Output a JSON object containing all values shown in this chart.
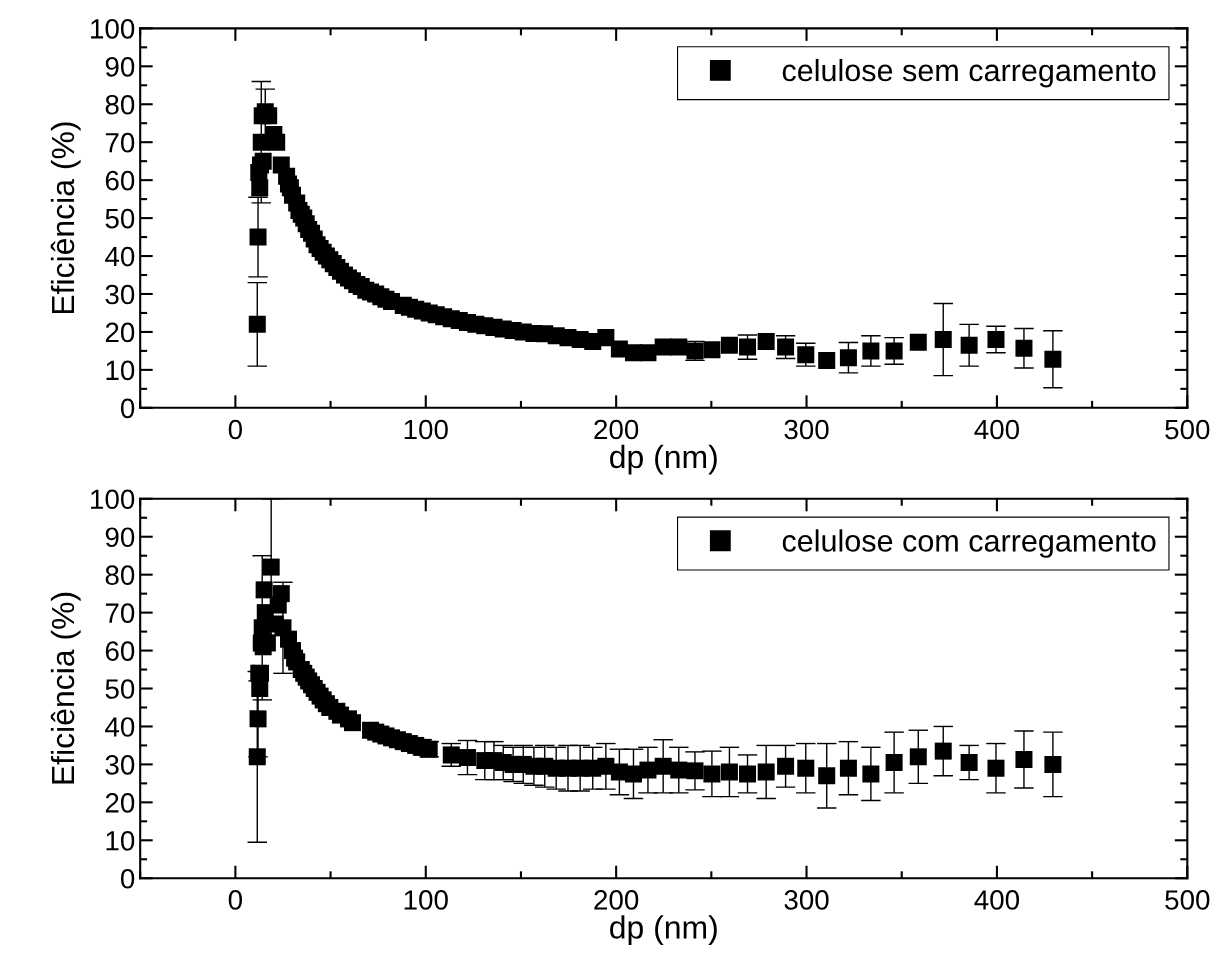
{
  "chart_data": [
    {
      "type": "scatter",
      "xlabel": "dp (nm)",
      "ylabel": "Eficiência (%)",
      "xlim": [
        -50,
        500
      ],
      "xticks": [
        0,
        100,
        200,
        300,
        400,
        500
      ],
      "ylim": [
        0,
        100
      ],
      "yticks": [
        0,
        10,
        20,
        30,
        40,
        50,
        60,
        70,
        80,
        90,
        100
      ],
      "legend": "top right",
      "marker": "square",
      "grid": false,
      "series": [
        {
          "name": "celulose sem carregamento",
          "color": "#000000",
          "x": [
            11.5,
            11.9,
            12.3,
            12.8,
            13.2,
            13.6,
            14.1,
            14.6,
            15.7,
            17.5,
            20.2,
            21.7,
            24.1,
            26.9,
            27.9,
            28.9,
            30.0,
            32.2,
            33.4,
            34.6,
            35.9,
            37.2,
            38.5,
            40.0,
            41.4,
            42.9,
            44.5,
            46.1,
            47.8,
            49.6,
            51.4,
            53.3,
            55.2,
            57.3,
            59.4,
            61.5,
            63.8,
            66.1,
            68.5,
            71.0,
            73.7,
            76.4,
            79.1,
            82.0,
            88.2,
            91.4,
            94.7,
            98.2,
            101.8,
            105.5,
            109.4,
            113.4,
            117.6,
            121.9,
            126.3,
            131.0,
            135.8,
            140.7,
            145.9,
            151.2,
            156.8,
            162.5,
            168.5,
            174.7,
            181.1,
            187.7,
            194.6,
            201.7,
            209.1,
            216.7,
            224.7,
            232.9,
            241.4,
            250.3,
            259.5,
            269.0,
            278.8,
            289.0,
            299.6,
            310.6,
            322.0,
            333.8,
            346.0,
            358.7,
            371.8,
            385.4,
            399.5,
            414.2,
            429.4
          ],
          "values": [
            22,
            45,
            62,
            58,
            64,
            70,
            77,
            65,
            78,
            77,
            72,
            70,
            64,
            61,
            59,
            58,
            56,
            54,
            52,
            51,
            50,
            48.5,
            47,
            46,
            44.5,
            43,
            42,
            41,
            40,
            39,
            38,
            37,
            36,
            35,
            34.2,
            33.5,
            32.5,
            32,
            31,
            30.5,
            30,
            29.3,
            28.6,
            28,
            27,
            26.5,
            26,
            25.5,
            25,
            24.5,
            24,
            23.5,
            23,
            22.5,
            22,
            21.6,
            21.2,
            20.8,
            20.4,
            20,
            19.6,
            19.5,
            19,
            18.5,
            18,
            17.5,
            18.5,
            15.5,
            14.5,
            14.5,
            16,
            16,
            15,
            15.3,
            16.5,
            16,
            17.5,
            16,
            14,
            12.5,
            13.2,
            15,
            15,
            17.3,
            18,
            16.5,
            18,
            15.7,
            12.8
          ],
          "errors": [
            11,
            10.5,
            null,
            null,
            null,
            16,
            null,
            null,
            6,
            null,
            null,
            null,
            null,
            null,
            null,
            null,
            null,
            null,
            null,
            null,
            null,
            null,
            null,
            null,
            null,
            null,
            null,
            null,
            null,
            null,
            null,
            null,
            null,
            null,
            null,
            null,
            null,
            null,
            null,
            null,
            null,
            null,
            null,
            null,
            null,
            null,
            null,
            null,
            null,
            null,
            null,
            null,
            null,
            null,
            null,
            null,
            null,
            null,
            null,
            null,
            null,
            null,
            null,
            null,
            null,
            null,
            null,
            null,
            null,
            null,
            null,
            null,
            2.5,
            null,
            null,
            3.2,
            null,
            3,
            3,
            null,
            4,
            4,
            3.5,
            null,
            9.5,
            5.5,
            3.5,
            5.2,
            7.5
          ]
        }
      ]
    },
    {
      "type": "scatter",
      "xlabel": "dp (nm)",
      "ylabel": "Eficiência (%)",
      "xlim": [
        -50,
        500
      ],
      "xticks": [
        0,
        100,
        200,
        300,
        400,
        500
      ],
      "ylim": [
        0,
        100
      ],
      "yticks": [
        0,
        10,
        20,
        30,
        40,
        50,
        60,
        70,
        80,
        90,
        100
      ],
      "legend": "top right",
      "marker": "square",
      "grid": false,
      "series": [
        {
          "name": "celulose com carregamento",
          "color": "#000000",
          "x": [
            11.5,
            11.9,
            12.3,
            12.8,
            13.2,
            13.6,
            14.1,
            14.6,
            15.1,
            15.7,
            16.8,
            18.8,
            20.9,
            22.5,
            24.1,
            25.0,
            27.9,
            30.0,
            31.1,
            32.2,
            34.6,
            35.9,
            37.2,
            38.5,
            40.0,
            41.4,
            42.9,
            44.5,
            46.1,
            47.8,
            49.6,
            53.3,
            55.2,
            59.4,
            61.5,
            71.0,
            73.7,
            76.4,
            79.1,
            82.0,
            85.1,
            88.2,
            91.4,
            94.7,
            98.2,
            101.8,
            113.4,
            121.9,
            131.0,
            135.8,
            140.7,
            145.9,
            151.2,
            156.8,
            162.5,
            168.5,
            174.7,
            181.1,
            187.7,
            194.6,
            201.7,
            209.1,
            216.7,
            224.7,
            232.9,
            241.4,
            250.3,
            259.5,
            269.0,
            278.8,
            289.0,
            299.6,
            310.6,
            322.0,
            333.8,
            346.0,
            358.7,
            371.8,
            385.4,
            399.5,
            414.2,
            429.4
          ],
          "values": [
            32,
            42,
            54,
            50,
            54,
            62,
            66,
            61,
            76,
            70,
            62,
            82,
            67,
            72,
            75,
            66,
            63,
            60,
            58,
            57,
            55,
            54,
            53,
            52,
            51,
            50,
            49,
            48,
            47,
            46,
            45,
            44,
            43,
            42,
            41,
            39,
            38.5,
            38,
            37.5,
            37,
            36.5,
            36,
            35.5,
            35,
            34.5,
            34,
            32.5,
            31.8,
            31,
            31,
            30.5,
            30,
            30,
            29.5,
            29.5,
            29,
            29,
            29,
            29,
            29.5,
            28,
            27.5,
            28.5,
            29.5,
            28.5,
            28.3,
            27.5,
            28,
            27.5,
            28,
            29.5,
            29,
            27,
            29,
            27.5,
            30.5,
            32,
            33.5,
            30.5,
            29,
            31.3,
            30
          ],
          "errors": [
            22.5,
            10,
            null,
            null,
            null,
            null,
            19,
            null,
            null,
            null,
            null,
            18,
            null,
            null,
            null,
            12,
            null,
            null,
            null,
            null,
            null,
            null,
            null,
            null,
            null,
            null,
            null,
            null,
            null,
            null,
            null,
            null,
            null,
            null,
            null,
            null,
            null,
            null,
            null,
            null,
            null,
            null,
            null,
            null,
            2,
            2,
            3,
            4.5,
            5,
            5,
            4.5,
            4.5,
            5,
            5,
            5.5,
            5.5,
            6,
            6,
            5.5,
            6,
            6,
            6.5,
            6,
            7,
            6,
            5,
            6,
            6.5,
            5,
            7,
            5.5,
            6.5,
            8.5,
            7,
            7,
            8,
            7,
            6.5,
            4.5,
            6.5,
            7.5,
            8.5
          ]
        }
      ]
    }
  ]
}
